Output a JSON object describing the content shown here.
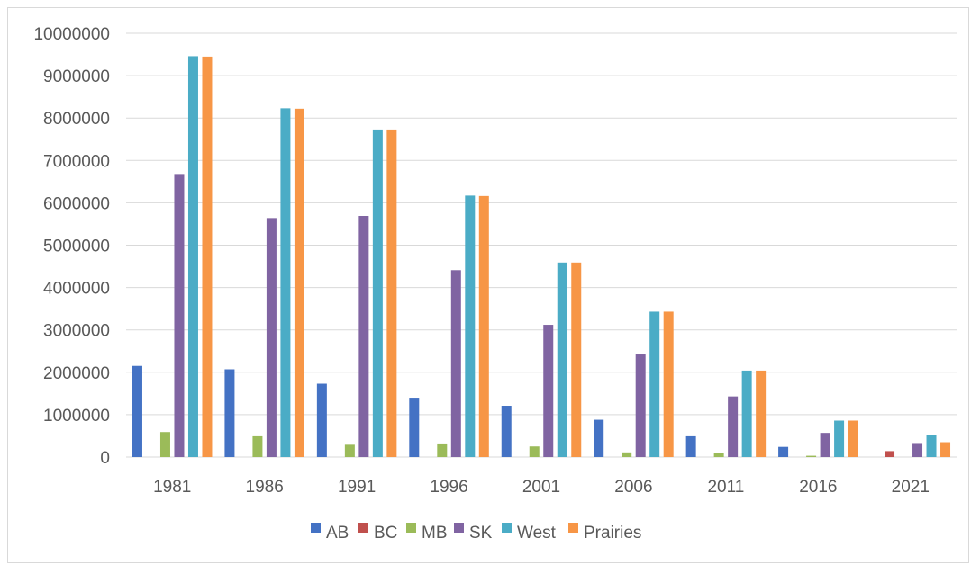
{
  "chart_data": {
    "type": "bar",
    "title": "",
    "xlabel": "",
    "ylabel": "",
    "ylim": [
      0,
      10000000
    ],
    "yticks": [
      0,
      1000000,
      2000000,
      3000000,
      4000000,
      5000000,
      6000000,
      7000000,
      8000000,
      9000000,
      10000000
    ],
    "ytick_labels": [
      "0",
      "1000000",
      "2000000",
      "3000000",
      "4000000",
      "5000000",
      "6000000",
      "7000000",
      "8000000",
      "9000000",
      "10000000"
    ],
    "grid": "horizontal",
    "legend_position": "bottom",
    "categories": [
      "1981",
      "1986",
      "1991",
      "1996",
      "2001",
      "2006",
      "2011",
      "2016",
      "2021"
    ],
    "series": [
      {
        "name": "AB",
        "color": "#4472c4",
        "values": [
          2150000,
          2070000,
          1730000,
          1400000,
          1210000,
          880000,
          490000,
          240000,
          0
        ]
      },
      {
        "name": "BC",
        "color": "#c0504d",
        "values": [
          0,
          0,
          0,
          0,
          0,
          0,
          0,
          0,
          140000
        ]
      },
      {
        "name": "MB",
        "color": "#9bbb59",
        "values": [
          590000,
          490000,
          290000,
          320000,
          250000,
          110000,
          90000,
          30000,
          0
        ]
      },
      {
        "name": "SK",
        "color": "#8064a2",
        "values": [
          6680000,
          5640000,
          5690000,
          4410000,
          3120000,
          2420000,
          1430000,
          570000,
          330000
        ]
      },
      {
        "name": "West",
        "color": "#4bacc6",
        "values": [
          9460000,
          8230000,
          7730000,
          6170000,
          4590000,
          3430000,
          2040000,
          860000,
          520000
        ]
      },
      {
        "name": "Prairies",
        "color": "#f79646",
        "values": [
          9450000,
          8220000,
          7730000,
          6160000,
          4590000,
          3430000,
          2040000,
          860000,
          350000
        ]
      }
    ]
  }
}
